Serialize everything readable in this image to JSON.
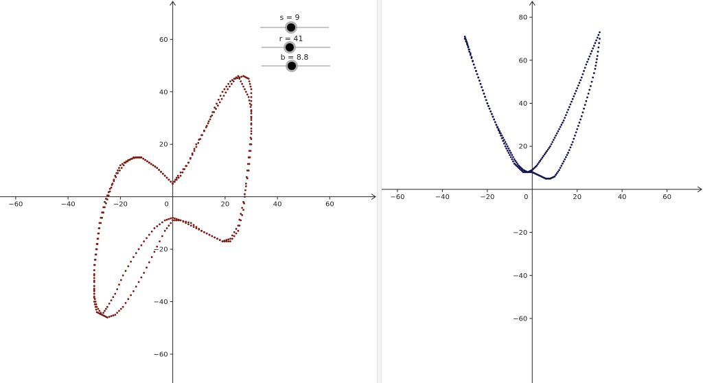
{
  "colors": {
    "axis": "#222222",
    "left_points": "#7a1b12",
    "right_points": "#161650",
    "slider_line": "#8e8e8e",
    "slider_knob": "#000000",
    "slider_halo": "#9a9a9a"
  },
  "sliders": [
    {
      "label": "s = 9",
      "name": "s",
      "value": 9
    },
    {
      "label": "r = 41",
      "name": "r",
      "value": 41
    },
    {
      "label": "b = 8.8",
      "name": "b",
      "value": 8.8
    }
  ],
  "chart_data": [
    {
      "type": "scatter",
      "title": "",
      "xlabel": "",
      "ylabel": "",
      "xlim": [
        -66,
        78
      ],
      "ylim": [
        -71,
        75
      ],
      "xticks": [
        -60,
        -40,
        -20,
        0,
        20,
        40,
        60
      ],
      "yticks": [
        -60,
        -40,
        -20,
        20,
        40,
        60
      ],
      "xtick_labels": [
        "−60",
        "−40",
        "−20",
        "0",
        "20",
        "40",
        "60"
      ],
      "ytick_labels": [
        "−60",
        "−40",
        "−20",
        "20",
        "40",
        "60"
      ],
      "grid": false,
      "series": [
        {
          "x": [
            0,
            -3,
            -6,
            -9,
            -12,
            -14,
            -17,
            -20,
            -22,
            -24,
            -26,
            -28,
            -29,
            -30,
            -30,
            -30,
            -29,
            -27,
            -25,
            -22,
            -19,
            -15,
            -11,
            -7,
            -3,
            0,
            3,
            7,
            11,
            15,
            19,
            22,
            25,
            27,
            29,
            30,
            30,
            30,
            29,
            27,
            25,
            22,
            19,
            16,
            13,
            9,
            6,
            2,
            0
          ],
          "y": [
            5,
            8,
            11,
            13,
            15,
            15,
            14,
            12,
            8,
            2,
            -4,
            -12,
            -20,
            -28,
            -34,
            -38,
            -42,
            -45,
            -46,
            -45,
            -42,
            -36,
            -29,
            -21,
            -13,
            -9,
            -9,
            -10,
            -13,
            -15,
            -17,
            -16,
            -11,
            -2,
            10,
            20,
            28,
            33,
            38,
            42,
            46,
            44,
            40,
            34,
            27,
            20,
            13,
            8,
            5
          ]
        },
        {
          "x": [
            0,
            3,
            6,
            9,
            12,
            15,
            18,
            21,
            24,
            27,
            29,
            30,
            30,
            30,
            29,
            28,
            27,
            25,
            22,
            19,
            15,
            11,
            7,
            3,
            0,
            -3,
            -7,
            -11,
            -15,
            -19,
            -22,
            -25,
            -27,
            -29,
            -30,
            -30,
            -30,
            -29,
            -28,
            -26,
            -24,
            -21,
            -18,
            -15,
            -12,
            -9,
            -6,
            -3,
            0
          ],
          "y": [
            5,
            8,
            13,
            19,
            25,
            31,
            36,
            41,
            45,
            46,
            45,
            41,
            35,
            25,
            15,
            5,
            -5,
            -13,
            -17,
            -17,
            -15,
            -13,
            -11,
            -9,
            -8,
            -9,
            -12,
            -17,
            -23,
            -30,
            -37,
            -42,
            -45,
            -44,
            -40,
            -34,
            -26,
            -18,
            -10,
            -2,
            3,
            9,
            13,
            15,
            15,
            13,
            11,
            8,
            5
          ]
        }
      ]
    },
    {
      "type": "scatter",
      "title": "",
      "xlabel": "",
      "ylabel": "",
      "xlim": [
        -67,
        76
      ],
      "ylim": [
        -90,
        88
      ],
      "xticks": [
        -60,
        -40,
        -20,
        0,
        20,
        40,
        60
      ],
      "yticks": [
        -60,
        -40,
        -20,
        20,
        40,
        60,
        80
      ],
      "xtick_labels": [
        "−60",
        "−40",
        "−20",
        "0",
        "20",
        "40",
        "60"
      ],
      "ytick_labels": [
        "−60",
        "−40",
        "−20",
        "20",
        "40",
        "60",
        "80"
      ],
      "grid": false,
      "series": [
        {
          "x": [
            -30,
            -29,
            -28,
            -26,
            -24,
            -22,
            -20,
            -18,
            -16,
            -14,
            -12,
            -10,
            -8,
            -6,
            -4,
            -2,
            0,
            2,
            4,
            6,
            8,
            10,
            12,
            14,
            16,
            18,
            20,
            22,
            24,
            26,
            28,
            30
          ],
          "y": [
            71,
            68,
            64,
            58,
            52,
            46,
            40,
            35,
            30,
            25,
            20,
            16,
            12,
            10,
            8,
            8,
            9,
            11,
            14,
            17,
            20,
            24,
            28,
            32,
            37,
            42,
            47,
            52,
            58,
            63,
            68,
            73
          ]
        },
        {
          "x": [
            -30,
            -28,
            -26,
            -24,
            -22,
            -20,
            -18,
            -16,
            -14,
            -12,
            -10,
            -8,
            -6,
            -4,
            -2,
            0,
            2,
            4,
            6,
            8,
            10,
            12,
            14,
            16,
            18,
            20,
            22,
            24,
            26,
            28,
            29,
            30
          ],
          "y": [
            70,
            65,
            58,
            52,
            46,
            40,
            35,
            30,
            26,
            22,
            18,
            14,
            11,
            9,
            8,
            8,
            7,
            6,
            5,
            5,
            6,
            9,
            13,
            17,
            22,
            28,
            34,
            41,
            48,
            56,
            62,
            70
          ]
        }
      ]
    }
  ]
}
